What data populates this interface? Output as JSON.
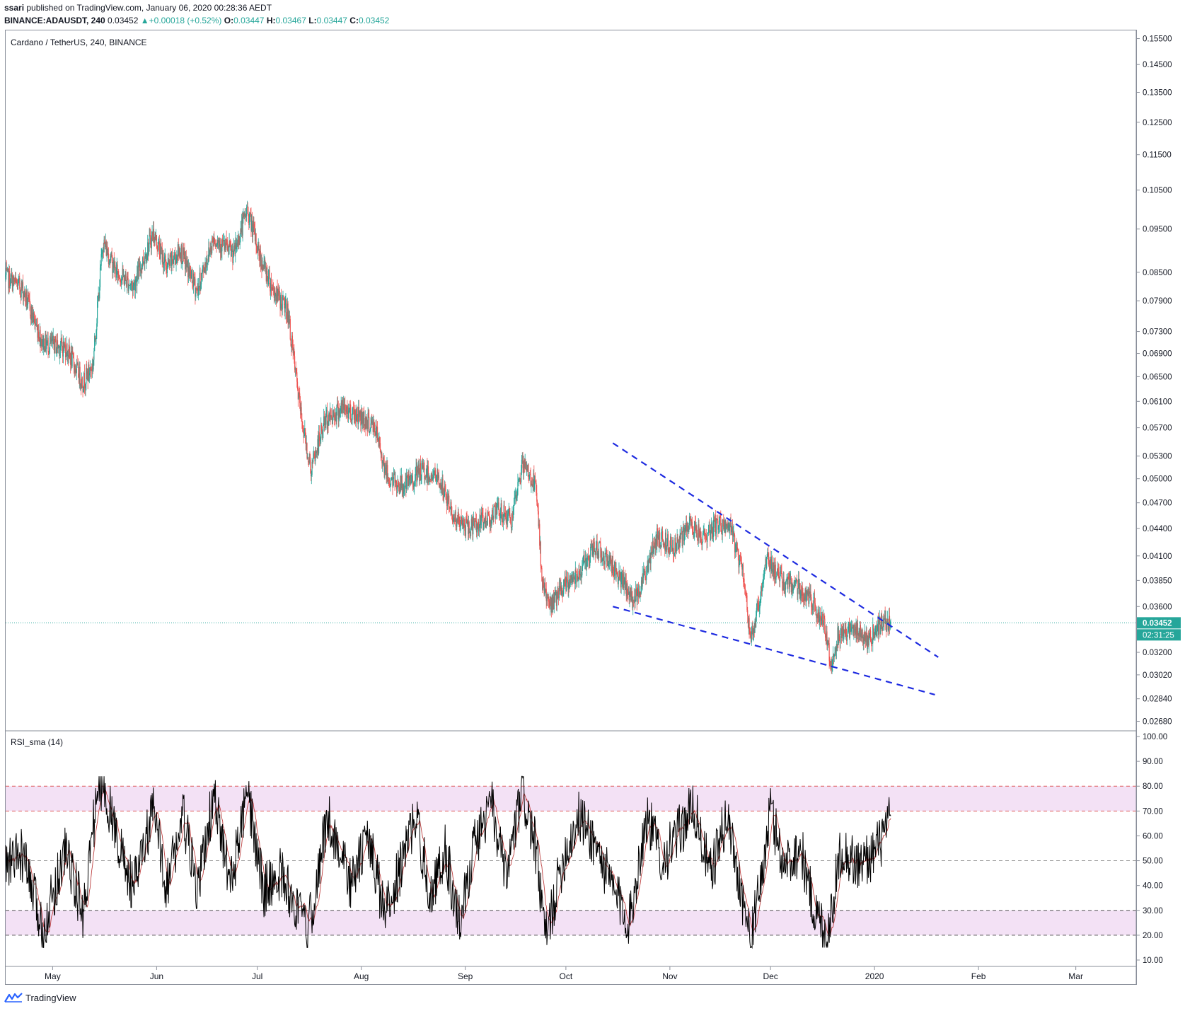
{
  "header": {
    "line1_user": "ssari",
    "line1_rest": " published on TradingView.com, January 06, 2020 00:28:36 AEDT",
    "symbol": "BINANCE:ADAUSDT, 240",
    "last": "0.03452",
    "change": "+0.00018 (+0.52%)",
    "o_label": "O:",
    "o_value": "0.03447",
    "h_label": "H:",
    "h_value": "0.03467",
    "l_label": "L:",
    "l_value": "0.03447",
    "c_label": "C:",
    "c_value": "0.03452"
  },
  "footer": {
    "brand": "TradingView"
  },
  "colors": {
    "up": "#26a69a",
    "down": "#ef5350",
    "trendline": "#1e2be0",
    "rsi_line": "#000000",
    "rsi_sma": "#b22222",
    "band": "#f3e1f5",
    "price_tag": "#26a69a"
  },
  "chart_data": [
    {
      "type": "candlestick",
      "title": "Cardano / TetherUS, 240, BINANCE",
      "y_scale": "log",
      "ylim": [
        0.0262,
        0.158
      ],
      "y_ticks": [
        "0.15500",
        "0.14500",
        "0.13500",
        "0.12500",
        "0.11500",
        "0.10500",
        "0.09500",
        "0.08500",
        "0.07900",
        "0.07300",
        "0.06900",
        "0.06500",
        "0.06100",
        "0.05700",
        "0.05300",
        "0.05000",
        "0.04700",
        "0.04400",
        "0.04100",
        "0.03850",
        "0.03600",
        "0.03200",
        "0.03020",
        "0.02840",
        "0.02680"
      ],
      "last_price": "0.03452",
      "countdown": "02:31:25",
      "x_ticks": [
        "May",
        "Jun",
        "Jul",
        "Aug",
        "Sep",
        "Oct",
        "Nov",
        "Dec",
        "2020",
        "Feb",
        "Mar"
      ],
      "x_tick_dates": [
        "2019-05-01",
        "2019-06-01",
        "2019-07-01",
        "2019-08-01",
        "2019-09-01",
        "2019-10-01",
        "2019-11-01",
        "2019-12-01",
        "2020-01-01",
        "2020-02-01",
        "2020-03-01"
      ],
      "xlim": [
        "2019-04-17",
        "2020-03-19"
      ],
      "price_path": [
        [
          "2019-04-17",
          0.084
        ],
        [
          "2019-04-22",
          0.0815
        ],
        [
          "2019-04-28",
          0.071
        ],
        [
          "2019-05-05",
          0.07
        ],
        [
          "2019-05-10",
          0.064
        ],
        [
          "2019-05-13",
          0.067
        ],
        [
          "2019-05-16",
          0.092
        ],
        [
          "2019-05-20",
          0.085
        ],
        [
          "2019-05-25",
          0.082
        ],
        [
          "2019-05-31",
          0.094
        ],
        [
          "2019-06-04",
          0.086
        ],
        [
          "2019-06-08",
          0.09
        ],
        [
          "2019-06-13",
          0.081
        ],
        [
          "2019-06-18",
          0.093
        ],
        [
          "2019-06-24",
          0.089
        ],
        [
          "2019-06-28",
          0.1
        ],
        [
          "2019-07-02",
          0.088
        ],
        [
          "2019-07-06",
          0.081
        ],
        [
          "2019-07-10",
          0.077
        ],
        [
          "2019-07-14",
          0.059
        ],
        [
          "2019-07-17",
          0.051
        ],
        [
          "2019-07-21",
          0.058
        ],
        [
          "2019-07-26",
          0.06
        ],
        [
          "2019-07-31",
          0.059
        ],
        [
          "2019-08-05",
          0.057
        ],
        [
          "2019-08-09",
          0.05
        ],
        [
          "2019-08-14",
          0.049
        ],
        [
          "2019-08-19",
          0.051
        ],
        [
          "2019-08-24",
          0.05
        ],
        [
          "2019-08-29",
          0.045
        ],
        [
          "2019-09-02",
          0.044
        ],
        [
          "2019-09-07",
          0.045
        ],
        [
          "2019-09-11",
          0.046
        ],
        [
          "2019-09-15",
          0.045
        ],
        [
          "2019-09-18",
          0.052
        ],
        [
          "2019-09-22",
          0.049
        ],
        [
          "2019-09-24",
          0.0385
        ],
        [
          "2019-09-26",
          0.036
        ],
        [
          "2019-10-01",
          0.038
        ],
        [
          "2019-10-05",
          0.0395
        ],
        [
          "2019-10-10",
          0.042
        ],
        [
          "2019-10-15",
          0.04
        ],
        [
          "2019-10-21",
          0.0365
        ],
        [
          "2019-10-25",
          0.0395
        ],
        [
          "2019-10-28",
          0.043
        ],
        [
          "2019-11-03",
          0.042
        ],
        [
          "2019-11-07",
          0.0445
        ],
        [
          "2019-11-11",
          0.043
        ],
        [
          "2019-11-15",
          0.0445
        ],
        [
          "2019-11-19",
          0.044
        ],
        [
          "2019-11-23",
          0.039
        ],
        [
          "2019-11-25",
          0.033
        ],
        [
          "2019-11-27",
          0.0355
        ],
        [
          "2019-11-30",
          0.041
        ],
        [
          "2019-12-04",
          0.0385
        ],
        [
          "2019-12-09",
          0.038
        ],
        [
          "2019-12-13",
          0.0365
        ],
        [
          "2019-12-17",
          0.0345
        ],
        [
          "2019-12-19",
          0.031
        ],
        [
          "2019-12-21",
          0.0335
        ],
        [
          "2019-12-26",
          0.034
        ],
        [
          "2019-12-30",
          0.033
        ],
        [
          "2020-01-03",
          0.0345
        ],
        [
          "2020-01-06",
          0.0345
        ]
      ],
      "trendlines": [
        {
          "from": [
            "2019-10-15",
            0.0548
          ],
          "to": [
            "2020-01-20",
            0.0316
          ]
        },
        {
          "from": [
            "2019-10-15",
            0.036
          ],
          "to": [
            "2020-01-19",
            0.0287
          ]
        }
      ]
    },
    {
      "type": "line",
      "title": "RSI_sma (14)",
      "ylim": [
        8,
        102
      ],
      "y_ticks": [
        "100.00",
        "90.00",
        "80.00",
        "70.00",
        "60.00",
        "50.00",
        "40.00",
        "30.00",
        "20.00",
        "10.00"
      ],
      "bands": [
        [
          70,
          80
        ],
        [
          20,
          30
        ]
      ],
      "levels": [
        80,
        70,
        50,
        30,
        20
      ],
      "last_value": 68,
      "rsi_path": [
        [
          "2019-04-17",
          48
        ],
        [
          "2019-04-22",
          52
        ],
        [
          "2019-04-28",
          22
        ],
        [
          "2019-05-05",
          55
        ],
        [
          "2019-05-10",
          28
        ],
        [
          "2019-05-14",
          74
        ],
        [
          "2019-05-16",
          82
        ],
        [
          "2019-05-20",
          60
        ],
        [
          "2019-05-25",
          38
        ],
        [
          "2019-05-31",
          70
        ],
        [
          "2019-06-04",
          40
        ],
        [
          "2019-06-09",
          68
        ],
        [
          "2019-06-13",
          37
        ],
        [
          "2019-06-18",
          76
        ],
        [
          "2019-06-23",
          40
        ],
        [
          "2019-06-28",
          76
        ],
        [
          "2019-07-03",
          38
        ],
        [
          "2019-07-08",
          45
        ],
        [
          "2019-07-13",
          30
        ],
        [
          "2019-07-16",
          20
        ],
        [
          "2019-07-22",
          68
        ],
        [
          "2019-07-29",
          40
        ],
        [
          "2019-08-03",
          60
        ],
        [
          "2019-08-08",
          28
        ],
        [
          "2019-08-13",
          48
        ],
        [
          "2019-08-17",
          68
        ],
        [
          "2019-08-22",
          35
        ],
        [
          "2019-08-26",
          55
        ],
        [
          "2019-08-30",
          25
        ],
        [
          "2019-09-04",
          58
        ],
        [
          "2019-09-09",
          72
        ],
        [
          "2019-09-13",
          42
        ],
        [
          "2019-09-18",
          78
        ],
        [
          "2019-09-22",
          55
        ],
        [
          "2019-09-25",
          18
        ],
        [
          "2019-09-30",
          50
        ],
        [
          "2019-10-05",
          68
        ],
        [
          "2019-10-10",
          56
        ],
        [
          "2019-10-15",
          38
        ],
        [
          "2019-10-20",
          26
        ],
        [
          "2019-10-25",
          68
        ],
        [
          "2019-10-30",
          50
        ],
        [
          "2019-11-04",
          62
        ],
        [
          "2019-11-08",
          72
        ],
        [
          "2019-11-13",
          44
        ],
        [
          "2019-11-18",
          68
        ],
        [
          "2019-11-22",
          40
        ],
        [
          "2019-11-25",
          17
        ],
        [
          "2019-11-28",
          40
        ],
        [
          "2019-12-01",
          70
        ],
        [
          "2019-12-05",
          48
        ],
        [
          "2019-12-10",
          55
        ],
        [
          "2019-12-14",
          30
        ],
        [
          "2019-12-18",
          20
        ],
        [
          "2019-12-22",
          55
        ],
        [
          "2019-12-27",
          48
        ],
        [
          "2019-12-31",
          52
        ],
        [
          "2020-01-04",
          60
        ],
        [
          "2020-01-06",
          68
        ]
      ]
    }
  ]
}
